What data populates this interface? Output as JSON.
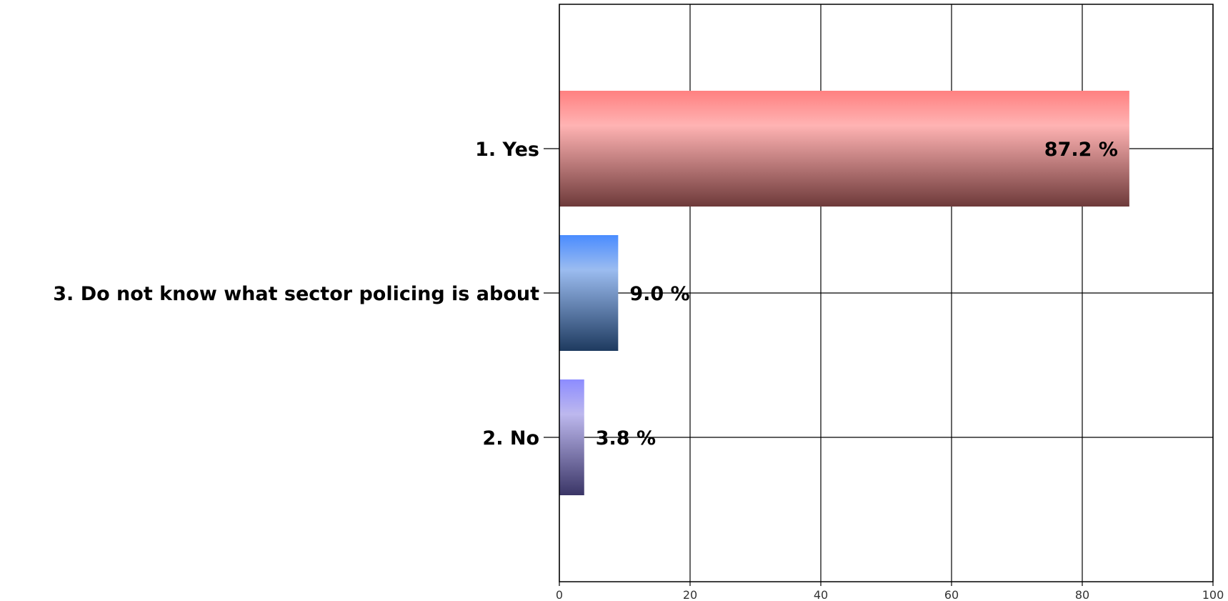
{
  "chart_data": {
    "type": "bar",
    "orientation": "horizontal",
    "categories": [
      "1. Yes",
      "3. Do not know what sector policing is about",
      "2. No"
    ],
    "values": [
      87.2,
      9.0,
      3.8
    ],
    "value_labels": [
      "87.2 %",
      "9.0 %",
      "3.8 %"
    ],
    "xlim": [
      0,
      100
    ],
    "x_ticks": [
      "0",
      "20",
      "40",
      "60",
      "80",
      "100"
    ],
    "grid": true,
    "title": "",
    "xlabel": "",
    "ylabel": "",
    "bar_colors": [
      {
        "top": "#ff8080",
        "mid": "#ffb3b3",
        "bottom": "#6e3a3a"
      },
      {
        "top": "#4a8cff",
        "mid": "#9bbcf0",
        "bottom": "#1e3a5f"
      },
      {
        "top": "#8c8cff",
        "mid": "#bdb8ee",
        "bottom": "#3a3566"
      }
    ]
  }
}
